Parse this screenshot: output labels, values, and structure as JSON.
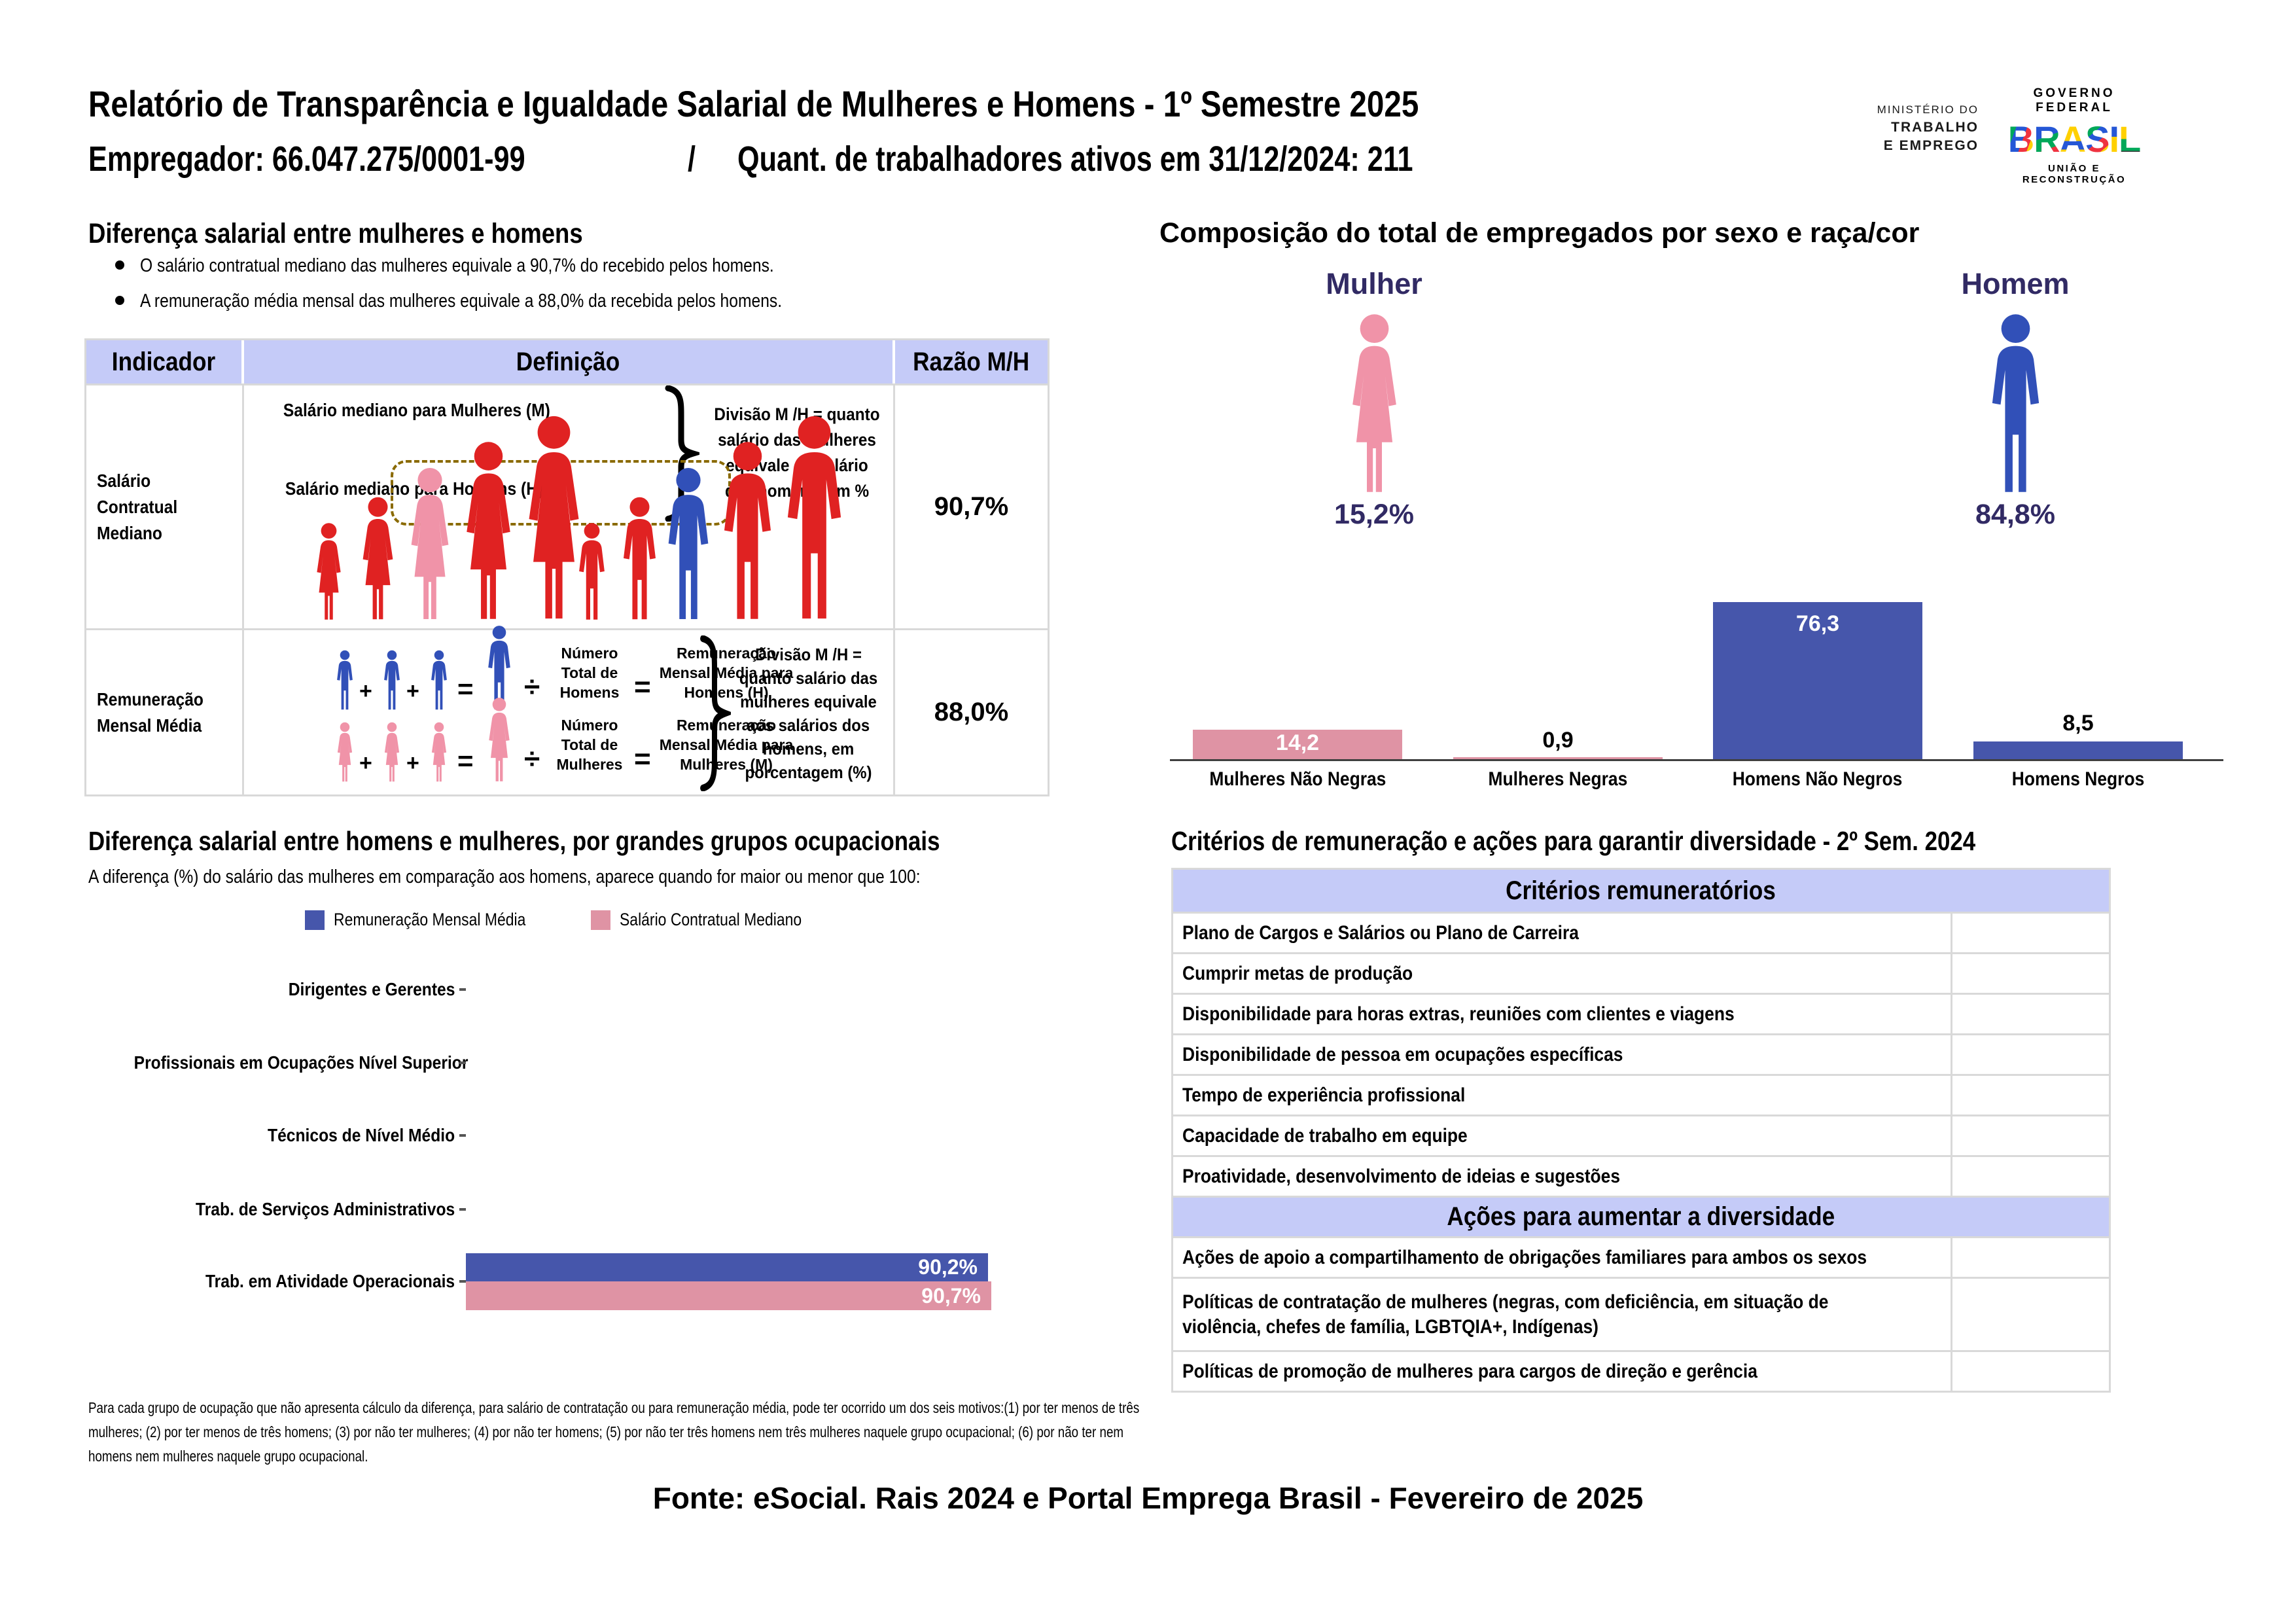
{
  "header": {
    "title": "Relatório de Transparência e Igualdade Salarial de Mulheres e Homens - 1º Semestre 2025",
    "employer": "Empregador: 66.047.275/0001-99",
    "separator": "/",
    "workers": "Quant. de trabalhadores ativos em 31/12/2024: 211",
    "ministry_lines": [
      "MINISTÉRIO DO",
      "TRABALHO",
      "E EMPREGO"
    ],
    "gov_federal": "GOVERNO FEDERAL",
    "brasil_letters": [
      "B",
      "R",
      "A",
      "S",
      "I",
      "L"
    ],
    "uniao": "UNIÃO E RECONSTRUÇÃO"
  },
  "pay_gap": {
    "title": "Diferença salarial entre mulheres e homens",
    "bullets": [
      "O salário contratual mediano das mulheres equivale a 90,7% do recebido pelos homens.",
      "A remuneração média mensal das mulheres equivale a 88,0% da recebida pelos homens."
    ],
    "table": {
      "headers": [
        "Indicador",
        "Definição",
        "Razão M/H"
      ],
      "row1": {
        "indicator": "Salário Contratual Mediano",
        "label_women": "Salário mediano para Mulheres (M)",
        "label_men": "Salário mediano para Homens (H)",
        "explanation": "Divisão M /H = quanto salário das mulheres equivale ao salário dos homens, em %",
        "ratio": "90,7%"
      },
      "row2": {
        "indicator": "Remuneração Mensal Média",
        "plus": "+",
        "equals": "=",
        "divide": "÷",
        "men_count": "Número Total de Homens",
        "men_avg": "Remuneração Mensal Média para Homens (H)",
        "women_count": "Número Total de Mulheres",
        "women_avg": "Remuneração Mensal Média para Mulheres (M)",
        "explanation": "Divisão M /H = quanto salário das mulheres equivale aos salários dos homens, em porcentagem (%)",
        "ratio": "88,0%"
      }
    }
  },
  "composition": {
    "title": "Composição do total de empregados por sexo e raça/cor",
    "groups": [
      {
        "label": "Mulher",
        "pct": "15,2%"
      },
      {
        "label": "Homem",
        "pct": "84,8%"
      }
    ]
  },
  "occupational": {
    "title": "Diferença salarial entre homens e mulheres, por grandes grupos ocupacionais",
    "subtitle": "A diferença (%) do salário das mulheres em comparação aos homens, aparece quando for maior ou menor que 100:",
    "footnote": "Para cada grupo de ocupação que não apresenta cálculo da diferença, para salário de contratação ou para remuneração média, pode ter ocorrido um dos seis motivos:(1) por ter menos de três mulheres; (2) por ter menos de três homens; (3) por não ter mulheres; (4) por não ter homens; (5) por não ter três homens nem três mulheres naquele grupo ocupacional; (6) por não ter nem homens nem mulheres naquele grupo ocupacional."
  },
  "criteria": {
    "title": "Critérios de remuneração e ações para garantir diversidade - 2º Sem. 2024",
    "section1": "Critérios remuneratórios",
    "rows1": [
      "Plano de Cargos e Salários ou Plano de Carreira",
      "Cumprir metas de produção",
      "Disponibilidade para horas extras, reuniões com clientes e viagens",
      "Disponibilidade de pessoa em ocupações específicas",
      "Tempo de experiência profissional",
      "Capacidade de trabalho em equipe",
      "Proatividade, desenvolvimento de ideias e sugestões"
    ],
    "section2": "Ações para aumentar a diversidade",
    "rows2": [
      "Ações de apoio a compartilhamento de obrigações familiares para ambos os sexos",
      "Políticas de contratação de mulheres (negras, com deficiência, em situação de violência, chefes de família, LGBTQIA+, Indígenas)",
      "Políticas de promoção de mulheres para cargos de direção e gerência"
    ]
  },
  "footer": "Fonte: eSocial. Rais 2024 e Portal Emprega Brasil - Fevereiro de 2025",
  "chart_data": [
    {
      "type": "bar",
      "title": "Composição do total de empregados por sexo e raça/cor",
      "categories": [
        "Mulheres Não Negras",
        "Mulheres Negras",
        "Homens Não Negros",
        "Homens Negros"
      ],
      "values": [
        14.2,
        0.9,
        76.3,
        8.5
      ],
      "value_labels": [
        "14,2",
        "0,9",
        "76,3",
        "8,5"
      ],
      "unit": "percent",
      "ylim": [
        0,
        80
      ],
      "bar_colors": [
        "#df93a4",
        "#df93a4",
        "#4656ab",
        "#4656ab"
      ],
      "female_pct": "15,2%",
      "male_pct": "84,8%"
    },
    {
      "type": "bar",
      "orientation": "horizontal",
      "categories": [
        "Dirigentes e Gerentes",
        "Profissionais em Ocupações Nível Superior",
        "Técnicos de Nível Médio",
        "Trab. de Serviços Administrativos",
        "Trab. em Atividade Operacionais"
      ],
      "series": [
        {
          "name": "Remuneração Mensal Média",
          "color": "#4656ab",
          "values": [
            null,
            null,
            null,
            null,
            90.2
          ],
          "value_labels": [
            null,
            null,
            null,
            null,
            "90,2%"
          ]
        },
        {
          "name": "Salário Contratual Mediano",
          "color": "#df93a4",
          "values": [
            null,
            null,
            null,
            null,
            90.7
          ],
          "value_labels": [
            null,
            null,
            null,
            null,
            "90,7%"
          ]
        }
      ],
      "xlim": [
        0,
        100
      ]
    }
  ],
  "colors": {
    "band": "#c5cbf8",
    "border": "#d9d9d9",
    "red_person": "#e02222",
    "pink_person": "#f093a8",
    "blue_person": "#3150b8",
    "pink_bar": "#df93a4",
    "blue_bar": "#4656ab",
    "navy_text": "#312a64",
    "dash_rect": "#8a6a00"
  }
}
